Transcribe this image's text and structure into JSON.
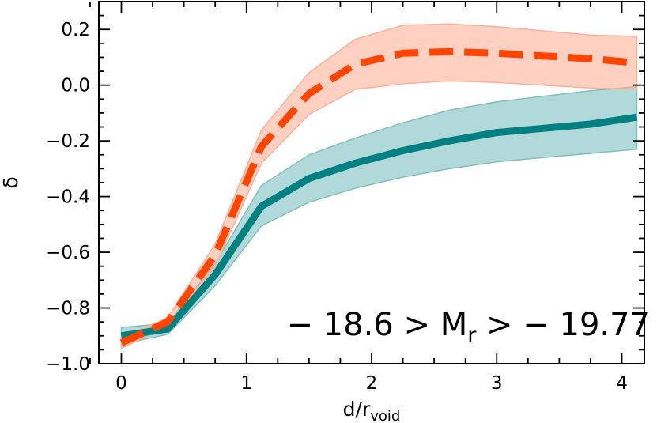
{
  "chart_data": {
    "type": "line",
    "title": "",
    "xlabel": "d/r",
    "xlabel_sub": "void",
    "ylabel": "δ",
    "xlim": [
      -0.18,
      4.18
    ],
    "ylim": [
      -1.0,
      0.3
    ],
    "xticks": [
      0,
      1,
      2,
      3,
      4
    ],
    "xtick_labels": [
      "0",
      "1",
      "2",
      "3",
      "4"
    ],
    "yticks": [
      -1.0,
      -0.8,
      -0.6,
      -0.4,
      -0.2,
      0.0,
      0.2
    ],
    "ytick_labels": [
      "−1.0",
      "−0.8",
      "−0.6",
      "−0.4",
      "−0.2",
      "0.0",
      "0.2"
    ],
    "grid": false,
    "annotation": {
      "pre": "− 18.6 > M",
      "sub": "r",
      "post": " > − 19.77"
    },
    "series": [
      {
        "style": "solid",
        "color": "#008080",
        "band_color": "#7fbfbf",
        "x": [
          0.0,
          0.37,
          0.75,
          1.12,
          1.5,
          1.87,
          2.25,
          2.62,
          3.0,
          3.37,
          3.75,
          4.12
        ],
        "values": [
          -0.9,
          -0.875,
          -0.68,
          -0.435,
          -0.335,
          -0.28,
          -0.235,
          -0.2,
          -0.17,
          -0.155,
          -0.14,
          -0.115
        ],
        "upper": [
          -0.87,
          -0.855,
          -0.64,
          -0.36,
          -0.25,
          -0.19,
          -0.135,
          -0.09,
          -0.06,
          -0.04,
          -0.02,
          -0.005
        ],
        "lower": [
          -0.93,
          -0.895,
          -0.72,
          -0.505,
          -0.42,
          -0.37,
          -0.33,
          -0.3,
          -0.275,
          -0.26,
          -0.245,
          -0.23
        ]
      },
      {
        "style": "dashed",
        "color": "#ff4500",
        "band_color": "#fbb09a",
        "x": [
          0.0,
          0.37,
          0.75,
          1.12,
          1.5,
          1.87,
          2.25,
          2.62,
          3.0,
          3.37,
          3.75,
          4.12
        ],
        "values": [
          -0.925,
          -0.85,
          -0.61,
          -0.22,
          -0.03,
          0.075,
          0.115,
          0.12,
          0.115,
          0.105,
          0.095,
          0.08
        ],
        "upper": [
          -0.905,
          -0.835,
          -0.57,
          -0.16,
          0.045,
          0.165,
          0.215,
          0.22,
          0.21,
          0.195,
          0.18,
          0.175
        ],
        "lower": [
          -0.945,
          -0.865,
          -0.65,
          -0.28,
          -0.105,
          -0.015,
          0.005,
          0.015,
          0.01,
          0.0,
          -0.01,
          -0.015
        ]
      }
    ]
  }
}
